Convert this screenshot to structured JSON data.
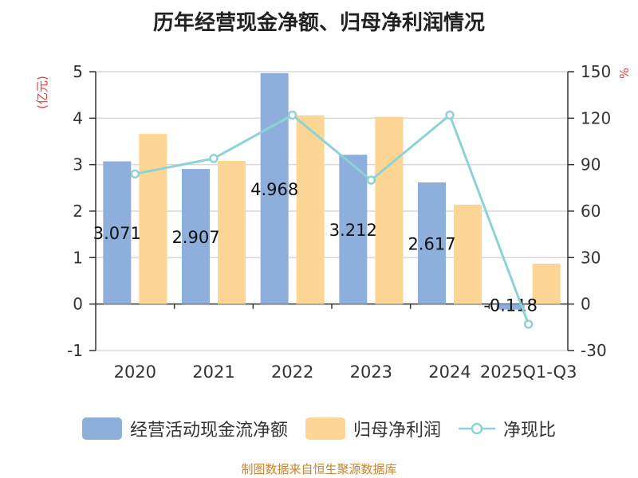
{
  "chart_data": {
    "type": "bar",
    "title": "历年经营现金净额、归母净利润情况",
    "categories": [
      "2020",
      "2021",
      "2022",
      "2023",
      "2024",
      "2025Q1-Q3"
    ],
    "series": [
      {
        "name": "经营活动现金流净额",
        "axis": "left",
        "type": "bar",
        "color": "#8eaedb",
        "values": [
          3.071,
          2.907,
          4.968,
          3.212,
          2.617,
          -0.118
        ]
      },
      {
        "name": "归母净利润",
        "axis": "left",
        "type": "bar",
        "color": "#fdd595",
        "values": [
          3.66,
          3.08,
          4.06,
          4.03,
          2.14,
          0.87
        ]
      },
      {
        "name": "净现比",
        "axis": "right",
        "type": "line",
        "color": "#8dd3d6",
        "values": [
          84,
          94,
          122,
          80,
          122,
          -13
        ]
      }
    ],
    "data_labels": [
      "3.071",
      "2.907",
      "4.968",
      "3.212",
      "2.617",
      "-0.118"
    ],
    "y_left": {
      "label": "(亿元)",
      "min": -1,
      "max": 5,
      "ticks": [
        "-1",
        "0",
        "1",
        "2",
        "3",
        "4",
        "5"
      ]
    },
    "y_right": {
      "label": "%",
      "min": -30,
      "max": 150,
      "ticks": [
        "-30",
        "0",
        "30",
        "60",
        "90",
        "120",
        "150"
      ]
    },
    "grid": true,
    "legend_position": "bottom",
    "axis_label_color": "#e63c3c"
  },
  "footer": {
    "source": "制图数据来自恒生聚源数据库"
  }
}
